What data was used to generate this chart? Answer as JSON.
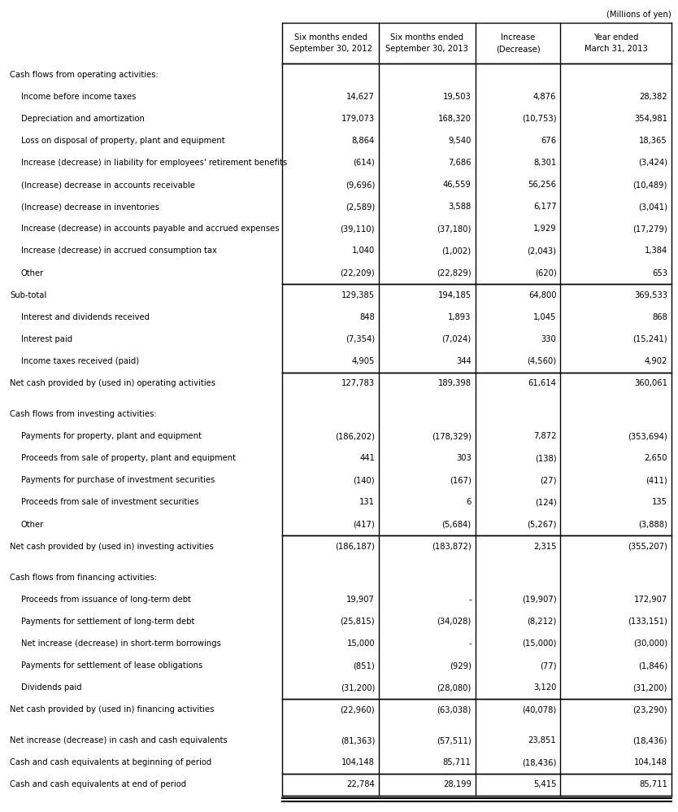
{
  "title_note": "(Millions of yen)",
  "headers": [
    "Six months ended\nSeptember 30, 2012",
    "Six months ended\nSeptember 30, 2013",
    "Increase\n(Decrease)",
    "Year ended\nMarch 31, 2013"
  ],
  "rows": [
    {
      "label": "Cash flows from operating activities:",
      "values": [
        "",
        "",
        "",
        ""
      ],
      "indent": 0,
      "style": "section",
      "border_top": false,
      "border_bottom": false
    },
    {
      "label": "Income before income taxes",
      "values": [
        "14,627",
        "19,503",
        "4,876",
        "28,382"
      ],
      "indent": 1,
      "style": "normal",
      "border_top": false,
      "border_bottom": false
    },
    {
      "label": "Depreciation and amortization",
      "values": [
        "179,073",
        "168,320",
        "(10,753)",
        "354,981"
      ],
      "indent": 1,
      "style": "normal",
      "border_top": false,
      "border_bottom": false
    },
    {
      "label": "Loss on disposal of property, plant and equipment",
      "values": [
        "8,864",
        "9,540",
        "676",
        "18,365"
      ],
      "indent": 1,
      "style": "normal",
      "border_top": false,
      "border_bottom": false
    },
    {
      "label": "Increase (decrease) in liability for employees' retirement benefits",
      "values": [
        "(614)",
        "7,686",
        "8,301",
        "(3,424)"
      ],
      "indent": 1,
      "style": "normal",
      "border_top": false,
      "border_bottom": false
    },
    {
      "label": "(Increase) decrease in accounts receivable",
      "values": [
        "(9,696)",
        "46,559",
        "56,256",
        "(10,489)"
      ],
      "indent": 1,
      "style": "normal",
      "border_top": false,
      "border_bottom": false
    },
    {
      "label": "(Increase) decrease in inventories",
      "values": [
        "(2,589)",
        "3,588",
        "6,177",
        "(3,041)"
      ],
      "indent": 1,
      "style": "normal",
      "border_top": false,
      "border_bottom": false
    },
    {
      "label": "Increase (decrease) in accounts payable and accrued expenses",
      "values": [
        "(39,110)",
        "(37,180)",
        "1,929",
        "(17,279)"
      ],
      "indent": 1,
      "style": "normal",
      "border_top": false,
      "border_bottom": false
    },
    {
      "label": "Increase (decrease) in accrued consumption tax",
      "values": [
        "1,040",
        "(1,002)",
        "(2,043)",
        "1,384"
      ],
      "indent": 1,
      "style": "normal",
      "border_top": false,
      "border_bottom": false
    },
    {
      "label": "Other",
      "values": [
        "(22,209)",
        "(22,829)",
        "(620)",
        "653"
      ],
      "indent": 1,
      "style": "normal",
      "border_top": false,
      "border_bottom": true
    },
    {
      "label": "Sub-total",
      "values": [
        "129,385",
        "194,185",
        "64,800",
        "369,533"
      ],
      "indent": 0,
      "style": "subtotal",
      "border_top": true,
      "border_bottom": false
    },
    {
      "label": "Interest and dividends received",
      "values": [
        "848",
        "1,893",
        "1,045",
        "868"
      ],
      "indent": 1,
      "style": "normal",
      "border_top": false,
      "border_bottom": false
    },
    {
      "label": "Interest paid",
      "values": [
        "(7,354)",
        "(7,024)",
        "330",
        "(15,241)"
      ],
      "indent": 1,
      "style": "normal",
      "border_top": false,
      "border_bottom": false
    },
    {
      "label": "Income taxes received (paid)",
      "values": [
        "4,905",
        "344",
        "(4,560)",
        "4,902"
      ],
      "indent": 1,
      "style": "normal",
      "border_top": false,
      "border_bottom": true
    },
    {
      "label": "Net cash provided by (used in) operating activities",
      "values": [
        "127,783",
        "189,398",
        "61,614",
        "360,061"
      ],
      "indent": 0,
      "style": "total",
      "border_top": true,
      "border_bottom": false
    },
    {
      "label": "",
      "values": [
        "",
        "",
        "",
        ""
      ],
      "indent": 0,
      "style": "spacer",
      "border_top": false,
      "border_bottom": false
    },
    {
      "label": "Cash flows from investing activities:",
      "values": [
        "",
        "",
        "",
        ""
      ],
      "indent": 0,
      "style": "section",
      "border_top": false,
      "border_bottom": false
    },
    {
      "label": "Payments for property, plant and equipment",
      "values": [
        "(186,202)",
        "(178,329)",
        "7,872",
        "(353,694)"
      ],
      "indent": 1,
      "style": "normal",
      "border_top": false,
      "border_bottom": false
    },
    {
      "label": "Proceeds from sale of property, plant and equipment",
      "values": [
        "441",
        "303",
        "(138)",
        "2,650"
      ],
      "indent": 1,
      "style": "normal",
      "border_top": false,
      "border_bottom": false
    },
    {
      "label": "Payments for purchase of investment securities",
      "values": [
        "(140)",
        "(167)",
        "(27)",
        "(411)"
      ],
      "indent": 1,
      "style": "normal",
      "border_top": false,
      "border_bottom": false
    },
    {
      "label": "Proceeds from sale of investment securities",
      "values": [
        "131",
        "6",
        "(124)",
        "135"
      ],
      "indent": 1,
      "style": "normal",
      "border_top": false,
      "border_bottom": false
    },
    {
      "label": "Other",
      "values": [
        "(417)",
        "(5,684)",
        "(5,267)",
        "(3,888)"
      ],
      "indent": 1,
      "style": "normal",
      "border_top": false,
      "border_bottom": true
    },
    {
      "label": "Net cash provided by (used in) investing activities",
      "values": [
        "(186,187)",
        "(183,872)",
        "2,315",
        "(355,207)"
      ],
      "indent": 0,
      "style": "total",
      "border_top": true,
      "border_bottom": false
    },
    {
      "label": "",
      "values": [
        "",
        "",
        "",
        ""
      ],
      "indent": 0,
      "style": "spacer",
      "border_top": false,
      "border_bottom": false
    },
    {
      "label": "Cash flows from financing activities:",
      "values": [
        "",
        "",
        "",
        ""
      ],
      "indent": 0,
      "style": "section",
      "border_top": false,
      "border_bottom": false
    },
    {
      "label": "Proceeds from issuance of long-term debt",
      "values": [
        "19,907",
        "-",
        "(19,907)",
        "172,907"
      ],
      "indent": 1,
      "style": "normal",
      "border_top": false,
      "border_bottom": false
    },
    {
      "label": "Payments for settlement of long-term debt",
      "values": [
        "(25,815)",
        "(34,028)",
        "(8,212)",
        "(133,151)"
      ],
      "indent": 1,
      "style": "normal",
      "border_top": false,
      "border_bottom": false
    },
    {
      "label": "Net increase (decrease) in short-term borrowings",
      "values": [
        "15,000",
        "-",
        "(15,000)",
        "(30,000)"
      ],
      "indent": 1,
      "style": "normal",
      "border_top": false,
      "border_bottom": false
    },
    {
      "label": "Payments for settlement of lease obligations",
      "values": [
        "(851)",
        "(929)",
        "(77)",
        "(1,846)"
      ],
      "indent": 1,
      "style": "normal",
      "border_top": false,
      "border_bottom": false
    },
    {
      "label": "Dividends paid",
      "values": [
        "(31,200)",
        "(28,080)",
        "3,120",
        "(31,200)"
      ],
      "indent": 1,
      "style": "normal",
      "border_top": false,
      "border_bottom": true
    },
    {
      "label": "Net cash provided by (used in) financing activities",
      "values": [
        "(22,960)",
        "(63,038)",
        "(40,078)",
        "(23,290)"
      ],
      "indent": 0,
      "style": "total",
      "border_top": true,
      "border_bottom": false
    },
    {
      "label": "",
      "values": [
        "",
        "",
        "",
        ""
      ],
      "indent": 0,
      "style": "spacer",
      "border_top": false,
      "border_bottom": false
    },
    {
      "label": "Net increase (decrease) in cash and cash equivalents",
      "values": [
        "(81,363)",
        "(57,511)",
        "23,851",
        "(18,436)"
      ],
      "indent": 0,
      "style": "normal",
      "border_top": false,
      "border_bottom": false
    },
    {
      "label": "Cash and cash equivalents at beginning of period",
      "values": [
        "104,148",
        "85,711",
        "(18,436)",
        "104,148"
      ],
      "indent": 0,
      "style": "normal",
      "border_top": false,
      "border_bottom": true
    },
    {
      "label": "Cash and cash equivalents at end of period",
      "values": [
        "22,784",
        "28,199",
        "5,415",
        "85,711"
      ],
      "indent": 0,
      "style": "normal",
      "border_top": true,
      "border_bottom": true
    }
  ],
  "bg_color": "#ffffff",
  "text_color": "#000000",
  "border_color": "#000000",
  "font_size": 7.2,
  "header_font_size": 7.2
}
